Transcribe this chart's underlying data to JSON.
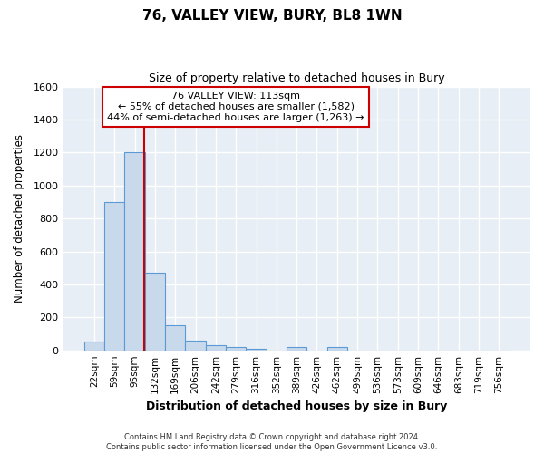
{
  "title1": "76, VALLEY VIEW, BURY, BL8 1WN",
  "title2": "Size of property relative to detached houses in Bury",
  "xlabel": "Distribution of detached houses by size in Bury",
  "ylabel": "Number of detached properties",
  "categories": [
    "22sqm",
    "59sqm",
    "95sqm",
    "132sqm",
    "169sqm",
    "206sqm",
    "242sqm",
    "279sqm",
    "316sqm",
    "352sqm",
    "389sqm",
    "426sqm",
    "462sqm",
    "499sqm",
    "536sqm",
    "573sqm",
    "609sqm",
    "646sqm",
    "683sqm",
    "719sqm",
    "756sqm"
  ],
  "values": [
    55,
    900,
    1200,
    470,
    150,
    60,
    30,
    22,
    10,
    0,
    22,
    0,
    22,
    0,
    0,
    0,
    0,
    0,
    0,
    0,
    0
  ],
  "bar_color": "#c8d9ec",
  "bar_edge_color": "#5b9bd5",
  "bar_edge_width": 0.8,
  "red_line_color": "#cc0000",
  "ylim": [
    0,
    1600
  ],
  "yticks": [
    0,
    200,
    400,
    600,
    800,
    1000,
    1200,
    1400,
    1600
  ],
  "fig_bg_color": "#ffffff",
  "ax_bg_color": "#e8eef5",
  "grid_color": "#ffffff",
  "annotation_text": "76 VALLEY VIEW: 113sqm\n← 55% of detached houses are smaller (1,582)\n44% of semi-detached houses are larger (1,263) →",
  "annotation_box_facecolor": "#ffffff",
  "annotation_box_edgecolor": "#cc0000",
  "footer_text": "Contains HM Land Registry data © Crown copyright and database right 2024.\nContains public sector information licensed under the Open Government Licence v3.0."
}
